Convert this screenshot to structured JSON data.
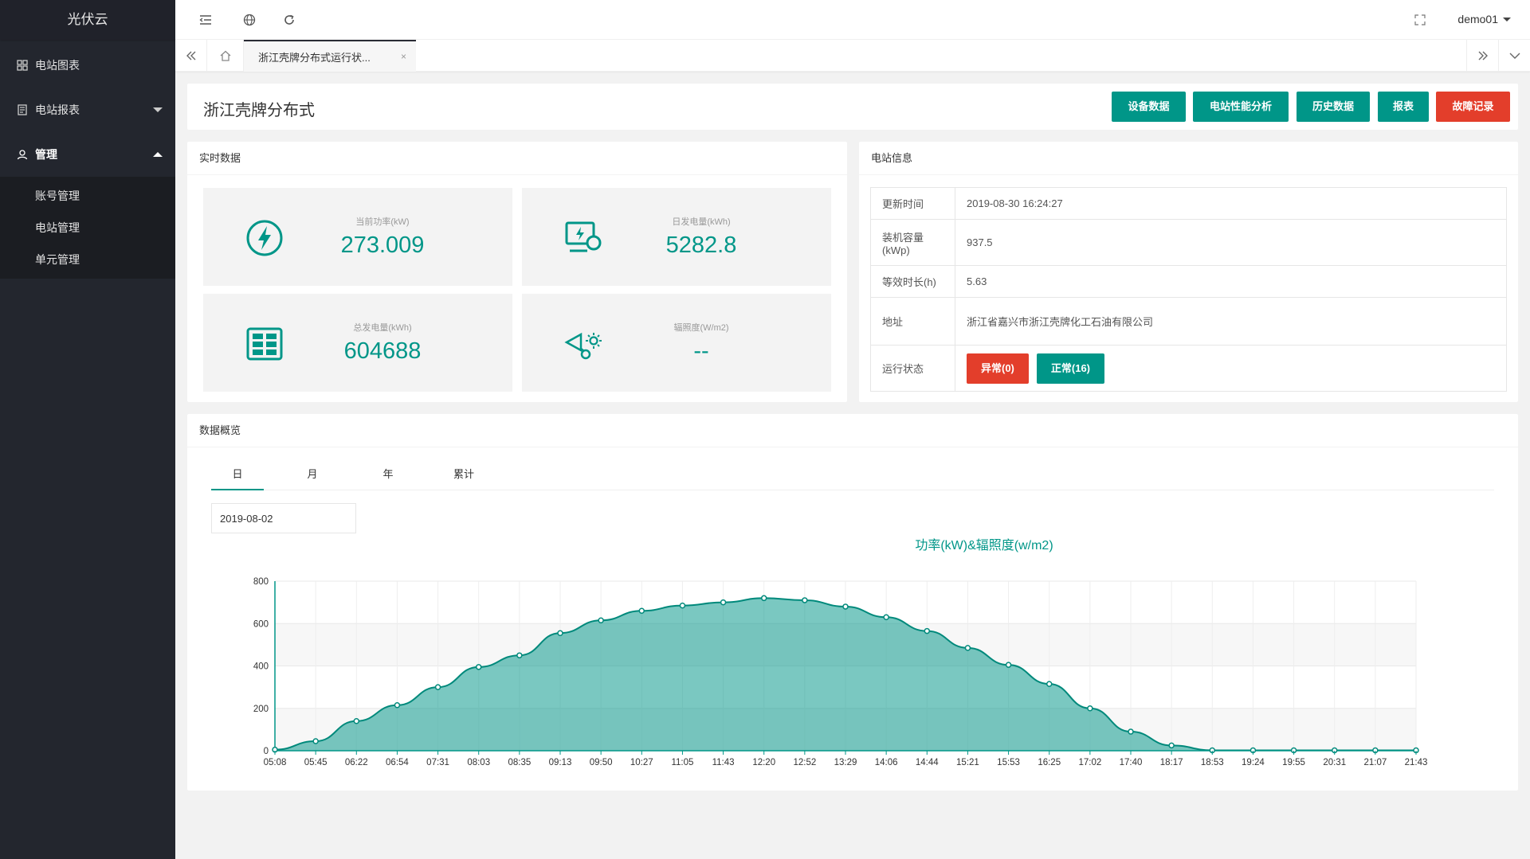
{
  "app": {
    "title": "光伏云"
  },
  "sidebar": {
    "items": [
      {
        "label": "电站图表",
        "icon": "dashboard-icon"
      },
      {
        "label": "电站报表",
        "icon": "report-icon"
      },
      {
        "label": "管理",
        "icon": "user-icon"
      }
    ],
    "submenu": [
      "账号管理",
      "电站管理",
      "单元管理"
    ]
  },
  "header": {
    "user": "demo01"
  },
  "tabbar": {
    "active_tab": "浙江壳牌分布式运行状...",
    "close": "×"
  },
  "page": {
    "title": "浙江壳牌分布式",
    "buttons": [
      {
        "label": "设备数据"
      },
      {
        "label": "电站性能分析"
      },
      {
        "label": "历史数据"
      },
      {
        "label": "报表"
      },
      {
        "label": "故障记录"
      }
    ]
  },
  "realtime": {
    "heading": "实时数据",
    "stats": [
      {
        "label": "当前功率(kW)",
        "value": "273.009",
        "icon": "lightning-icon"
      },
      {
        "label": "日发电量(kWh)",
        "value": "5282.8",
        "icon": "monitor-icon"
      },
      {
        "label": "总发电量(kWh)",
        "value": "604688",
        "icon": "grid-icon"
      },
      {
        "label": "辐照度(W/m2)",
        "value": "--",
        "icon": "irradiance-icon"
      }
    ]
  },
  "info": {
    "heading": "电站信息",
    "rows": [
      {
        "key": "更新时间",
        "value": "2019-08-30 16:24:27"
      },
      {
        "key": "装机容量(kWp)",
        "value": "937.5"
      },
      {
        "key": "等效时长(h)",
        "value": "5.63"
      },
      {
        "key": "地址",
        "value": "浙江省嘉兴市浙江壳牌化工石油有限公司"
      },
      {
        "key": "运行状态",
        "value": ""
      }
    ],
    "status": {
      "abnormal": "异常(0)",
      "normal": "正常(16)"
    }
  },
  "overview": {
    "heading": "数据概览",
    "tabs": [
      "日",
      "月",
      "年",
      "累计"
    ],
    "date": "2019-08-02"
  },
  "colors": {
    "accent": "#009688",
    "danger": "#e33e2b",
    "sidebar": "#23262e"
  },
  "chart_data": {
    "type": "area",
    "title": "功率(kW)&辐照度(w/m2)",
    "x": [
      "05:08",
      "05:45",
      "06:22",
      "06:54",
      "07:31",
      "08:03",
      "08:35",
      "09:13",
      "09:50",
      "10:27",
      "11:05",
      "11:43",
      "12:20",
      "12:52",
      "13:29",
      "14:06",
      "14:44",
      "15:21",
      "15:53",
      "16:25",
      "17:02",
      "17:40",
      "18:17",
      "18:53",
      "19:24",
      "19:55",
      "20:31",
      "21:07",
      "21:43"
    ],
    "series": [
      {
        "values": [
          5,
          45,
          140,
          215,
          300,
          395,
          450,
          555,
          615,
          660,
          685,
          700,
          720,
          710,
          680,
          630,
          565,
          485,
          405,
          315,
          200,
          90,
          25,
          2,
          2,
          2,
          2,
          2,
          2
        ]
      }
    ],
    "ylim": [
      0,
      800
    ],
    "yticks": [
      0,
      200,
      400,
      600,
      800
    ],
    "grid": true
  }
}
